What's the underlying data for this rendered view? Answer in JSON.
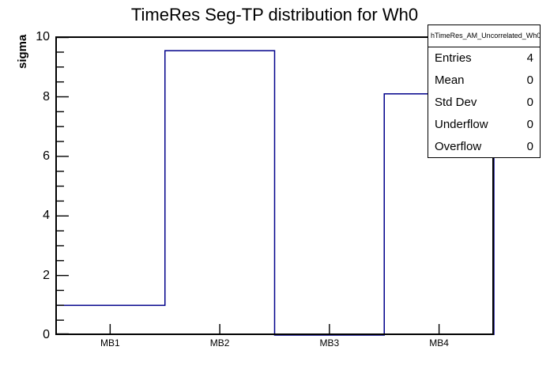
{
  "title": "TimeRes Seg-TP distribution for Wh0",
  "colors": {
    "background": "#ffffff",
    "axis": "#000000",
    "hist_line": "#00008b",
    "text": "#000000"
  },
  "y_axis": {
    "label": "sigma",
    "tick_labels": [
      "0",
      "2",
      "4",
      "6",
      "8",
      "10"
    ]
  },
  "x_axis": {
    "labels": [
      "MB1",
      "MB2",
      "MB3",
      "MB4"
    ]
  },
  "stats_box": {
    "title": "hTimeRes_AM_Uncorrelated_Wh0",
    "rows": [
      {
        "label": "Entries",
        "value": "4"
      },
      {
        "label": "Mean",
        "value": "0"
      },
      {
        "label": "Std Dev",
        "value": "0"
      },
      {
        "label": "Underflow",
        "value": "0"
      },
      {
        "label": "Overflow",
        "value": "0"
      }
    ]
  },
  "chart_data": {
    "type": "bar",
    "subtype": "step-histogram",
    "title": "TimeRes Seg-TP distribution for Wh0",
    "categories": [
      "MB1",
      "MB2",
      "MB3",
      "MB4"
    ],
    "values": [
      1.0,
      9.55,
      0.0,
      8.1
    ],
    "xlabel": "",
    "ylabel": "sigma",
    "ylim": [
      0,
      10.03
    ],
    "y_major_ticks": [
      0,
      2,
      4,
      6,
      8,
      10
    ],
    "y_minor_step": 0.5,
    "grid": false,
    "legend": false,
    "line_color": "#00008b"
  }
}
